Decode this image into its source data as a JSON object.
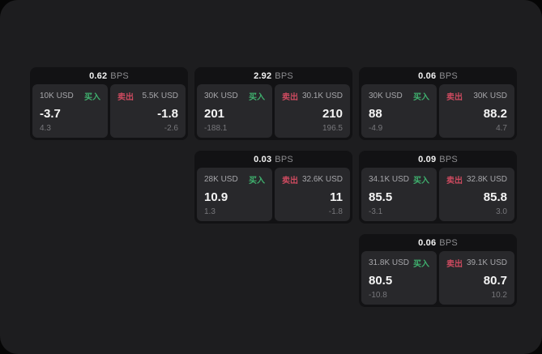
{
  "labels": {
    "bps_unit": "BPS",
    "buy_tag": "买入",
    "sell_tag": "卖出"
  },
  "colors": {
    "buy": "#3fb06e",
    "sell": "#cc4a5f",
    "surface": "#1d1d1f",
    "card": "#121214",
    "panel": "#28282b"
  },
  "cards": [
    {
      "bps": "0.62",
      "grid": {
        "row": 1,
        "col": 1
      },
      "buy": {
        "amount": "10K USD",
        "value": "-3.7",
        "delta": "4.3"
      },
      "sell": {
        "amount": "5.5K USD",
        "value": "-1.8",
        "delta": "-2.6"
      }
    },
    {
      "bps": "2.92",
      "grid": {
        "row": 1,
        "col": 2
      },
      "buy": {
        "amount": "30K USD",
        "value": "201",
        "delta": "-188.1"
      },
      "sell": {
        "amount": "30.1K USD",
        "value": "210",
        "delta": "196.5"
      }
    },
    {
      "bps": "0.06",
      "grid": {
        "row": 1,
        "col": 3
      },
      "buy": {
        "amount": "30K USD",
        "value": "88",
        "delta": "-4.9"
      },
      "sell": {
        "amount": "30K USD",
        "value": "88.2",
        "delta": "4.7"
      }
    },
    {
      "bps": "0.03",
      "grid": {
        "row": 2,
        "col": 2
      },
      "buy": {
        "amount": "28K USD",
        "value": "10.9",
        "delta": "1.3"
      },
      "sell": {
        "amount": "32.6K USD",
        "value": "11",
        "delta": "-1.8"
      }
    },
    {
      "bps": "0.09",
      "grid": {
        "row": 2,
        "col": 3
      },
      "buy": {
        "amount": "34.1K USD",
        "value": "85.5",
        "delta": "-3.1"
      },
      "sell": {
        "amount": "32.8K USD",
        "value": "85.8",
        "delta": "3.0"
      }
    },
    {
      "bps": "0.06",
      "grid": {
        "row": 3,
        "col": 3
      },
      "buy": {
        "amount": "31.8K USD",
        "value": "80.5",
        "delta": "-10.8"
      },
      "sell": {
        "amount": "39.1K USD",
        "value": "80.7",
        "delta": "10.2"
      }
    }
  ]
}
